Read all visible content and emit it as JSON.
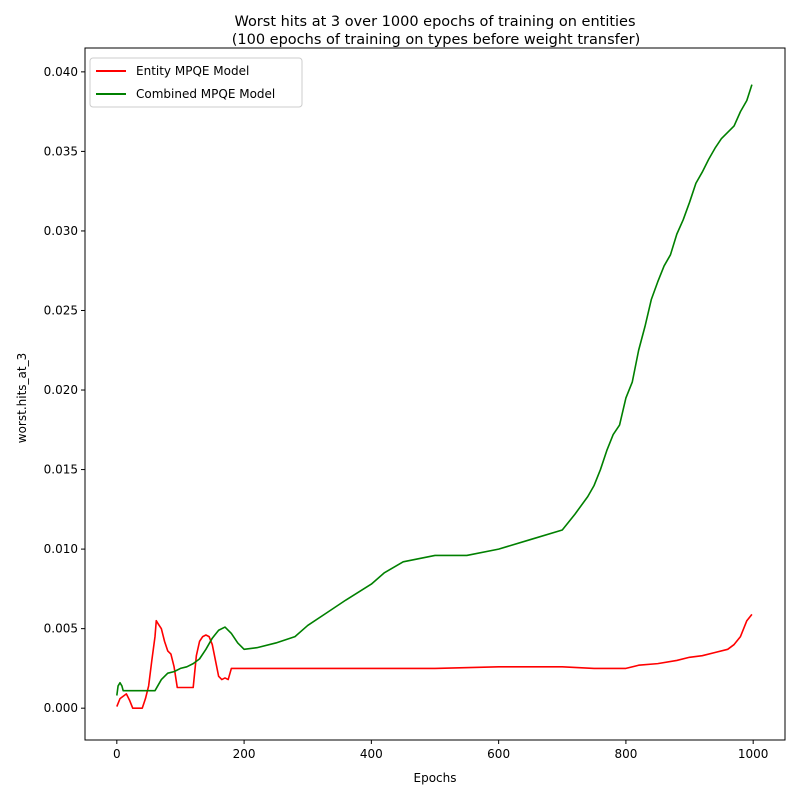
{
  "chart_data": {
    "type": "line",
    "title": "Worst hits at 3 over 1000 epochs of training on entities",
    "subtitle": "(100 epochs of training on types before weight transfer)",
    "xlabel": "Epochs",
    "ylabel": "worst.hits_at_3",
    "xlim": [
      -50,
      1050
    ],
    "ylim": [
      -0.002,
      0.0415
    ],
    "xticks": [
      "0",
      "200",
      "400",
      "600",
      "800",
      "1000"
    ],
    "yticks": [
      "0.000",
      "0.005",
      "0.010",
      "0.015",
      "0.020",
      "0.025",
      "0.030",
      "0.035",
      "0.040"
    ],
    "grid": false,
    "legend_position": "top-left",
    "series": [
      {
        "name": "Entity MPQE Model",
        "color": "#ff0000",
        "x": [
          0,
          5,
          15,
          20,
          25,
          40,
          45,
          50,
          55,
          60,
          62,
          65,
          70,
          75,
          80,
          85,
          90,
          95,
          100,
          110,
          120,
          125,
          130,
          135,
          140,
          145,
          150,
          155,
          160,
          165,
          170,
          175,
          180,
          200,
          250,
          300,
          400,
          500,
          600,
          700,
          750,
          800,
          820,
          850,
          880,
          900,
          920,
          940,
          960,
          970,
          980,
          990,
          998
        ],
        "y": [
          0.0001,
          0.0006,
          0.0009,
          0.0005,
          0.0,
          0.0,
          0.0006,
          0.0014,
          0.003,
          0.0045,
          0.0055,
          0.0053,
          0.005,
          0.0042,
          0.0036,
          0.0034,
          0.0026,
          0.0013,
          0.0013,
          0.0013,
          0.0013,
          0.0033,
          0.0042,
          0.0045,
          0.0046,
          0.0045,
          0.004,
          0.003,
          0.002,
          0.0018,
          0.0019,
          0.0018,
          0.0025,
          0.0025,
          0.0025,
          0.0025,
          0.0025,
          0.0025,
          0.0026,
          0.0026,
          0.0025,
          0.0025,
          0.0027,
          0.0028,
          0.003,
          0.0032,
          0.0033,
          0.0035,
          0.0037,
          0.004,
          0.0045,
          0.0055,
          0.0059
        ]
      },
      {
        "name": "Combined MPQE Model",
        "color": "#008000",
        "x": [
          0,
          2,
          5,
          8,
          10,
          20,
          40,
          60,
          70,
          80,
          90,
          100,
          110,
          120,
          130,
          140,
          150,
          160,
          170,
          180,
          190,
          200,
          220,
          250,
          280,
          300,
          330,
          360,
          400,
          420,
          450,
          500,
          550,
          600,
          650,
          700,
          720,
          740,
          750,
          760,
          770,
          780,
          790,
          800,
          810,
          820,
          830,
          840,
          850,
          860,
          870,
          880,
          890,
          900,
          910,
          920,
          930,
          940,
          950,
          960,
          970,
          980,
          990,
          998
        ],
        "y": [
          0.0008,
          0.0014,
          0.0016,
          0.0014,
          0.0011,
          0.0011,
          0.0011,
          0.0011,
          0.0018,
          0.0022,
          0.0023,
          0.0025,
          0.0026,
          0.0028,
          0.0031,
          0.0037,
          0.0044,
          0.0049,
          0.0051,
          0.0047,
          0.0041,
          0.0037,
          0.0038,
          0.0041,
          0.0045,
          0.0052,
          0.006,
          0.0068,
          0.0078,
          0.0085,
          0.0092,
          0.0096,
          0.0096,
          0.01,
          0.0106,
          0.0112,
          0.0122,
          0.0133,
          0.014,
          0.015,
          0.0162,
          0.0172,
          0.0178,
          0.0195,
          0.0205,
          0.0225,
          0.024,
          0.0257,
          0.0268,
          0.0278,
          0.0285,
          0.0298,
          0.0307,
          0.0318,
          0.033,
          0.0337,
          0.0345,
          0.0352,
          0.0358,
          0.0362,
          0.0366,
          0.0375,
          0.0382,
          0.0392
        ]
      }
    ]
  }
}
